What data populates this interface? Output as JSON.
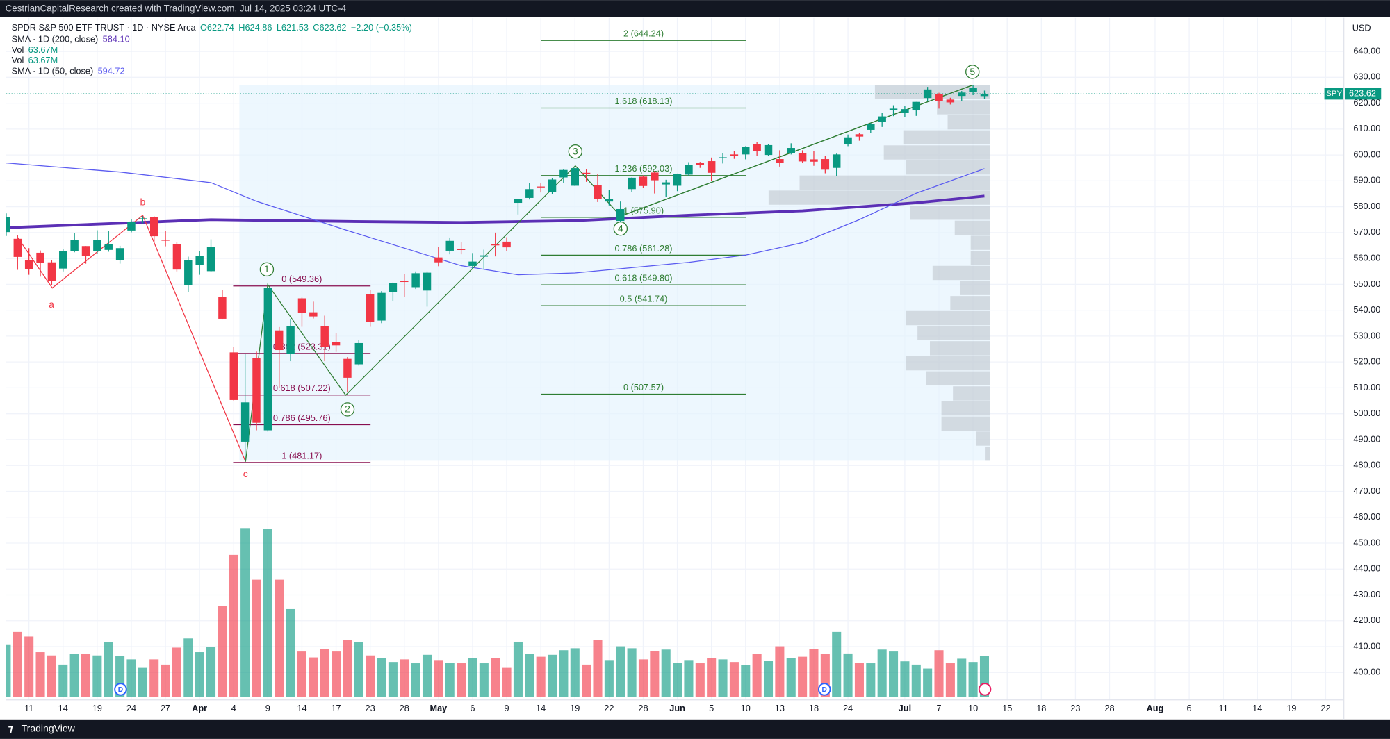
{
  "header": {
    "attribution": "CestrianCapitalResearch created with TradingView.com, Jul 14, 2025 03:24 UTC-4",
    "brand": "TradingView"
  },
  "chart_data": {
    "type": "candlestick",
    "title": "SPDR S&P 500 ETF TRUST · 1D · NYSE Arca",
    "ohlc_legend": [
      "O622.74",
      "H624.86",
      "L621.53",
      "C623.62",
      "−2.20 (−0.35%)"
    ],
    "symbol": "SPY",
    "currency": "USD",
    "up_color": "#089981",
    "down_color": "#f23645",
    "indicators": [
      {
        "label": "SMA · 1D (200, close)",
        "value": "584.10",
        "color": "#5b2fb5",
        "x": [
          0,
          10,
          18,
          30,
          40,
          50,
          60,
          70,
          80,
          86
        ],
        "values": [
          571.9,
          573.6,
          575.0,
          574.3,
          573.9,
          574.6,
          576.7,
          578.4,
          581.5,
          584.1
        ]
      },
      {
        "label": "Vol",
        "value": "63.67M",
        "color": "#089981"
      },
      {
        "label": "Vol",
        "value": "63.67M",
        "color": "#089981"
      },
      {
        "label": "SMA · 1D (50, close)",
        "value": "594.72",
        "color": "#5b5bf0",
        "x": [
          0,
          10,
          18,
          22,
          30,
          40,
          45,
          50,
          60,
          65,
          70,
          75,
          80,
          86
        ],
        "values": [
          596.9,
          593.4,
          589.3,
          582.1,
          570.8,
          557.2,
          553.7,
          554.4,
          558.5,
          561.3,
          566.1,
          575.0,
          585.2,
          594.7
        ]
      }
    ],
    "open": [
      570.2,
      567.6,
      559.4,
      562.2,
      558.5,
      556.1,
      562.8,
      564.8,
      562.8,
      563.3,
      559.3,
      570.8,
      575.3,
      576.0,
      567.2,
      565.5,
      549.8,
      557.5,
      555.1,
      545.1,
      523.7,
      489.2,
      521.5,
      493.6,
      532.2,
      523.0,
      544.6,
      539.2,
      533.8,
      527.6,
      521.2,
      519.1,
      546.1,
      536.0,
      547.0,
      551.4,
      548.9,
      547.6,
      560.4,
      563.0,
      563.6,
      557.1,
      560.7,
      565.4,
      566.5,
      581.5,
      583.4,
      587.8,
      585.6,
      591.3,
      588.1,
      593.1,
      588.4,
      582.0,
      574.5,
      586.8,
      591.6,
      593.2,
      588.6,
      588.1,
      592.4,
      596.9,
      597.6,
      598.7,
      600.2,
      600.2,
      604.2,
      600.0,
      598.4,
      600.7,
      600.7,
      598.3,
      598.4,
      595.0,
      604.3,
      608.0,
      609.7,
      612.9,
      617.4,
      616.4,
      617.2,
      622.0,
      623.4,
      621.4,
      622.8,
      624.2,
      622.74
    ],
    "high": [
      577.4,
      569.1,
      564.0,
      563.1,
      559.4,
      563.8,
      569.7,
      564.8,
      570.9,
      570.6,
      564.9,
      575.2,
      576.4,
      576.3,
      570.7,
      566.3,
      560.7,
      562.9,
      567.4,
      547.9,
      525.9,
      523.2,
      524.0,
      548.6,
      533.5,
      536.4,
      544.9,
      543.3,
      537.9,
      531.2,
      521.9,
      528.6,
      547.8,
      547.4,
      550.7,
      553.9,
      555.0,
      555.0,
      564.6,
      568.1,
      566.2,
      562.1,
      563.4,
      570.0,
      568.2,
      583.0,
      589.1,
      589.0,
      590.9,
      594.5,
      595.5,
      594.5,
      592.6,
      586.6,
      582.0,
      591.3,
      592.1,
      593.8,
      590.4,
      592.8,
      597.2,
      597.3,
      599.0,
      600.8,
      601.4,
      603.4,
      605.0,
      604.1,
      601.8,
      604.5,
      601.8,
      601.4,
      599.5,
      600.5,
      607.9,
      608.6,
      612.3,
      616.4,
      619.2,
      618.8,
      620.5,
      626.3,
      624.0,
      622.1,
      624.7,
      626.9,
      624.86
    ],
    "low": [
      568.7,
      555.6,
      553.7,
      553.0,
      549.7,
      555.0,
      562.4,
      558.0,
      561.7,
      562.6,
      558.0,
      570.1,
      573.6,
      566.5,
      564.7,
      555.0,
      546.9,
      553.7,
      554.8,
      536.4,
      505.1,
      481.8,
      493.6,
      493.1,
      509.9,
      520.3,
      533.6,
      536.8,
      520.3,
      523.9,
      508.3,
      518.6,
      533.6,
      535.0,
      543.4,
      545.0,
      548.2,
      541.4,
      557.0,
      561.6,
      561.6,
      556.1,
      555.9,
      560.8,
      562.8,
      577.0,
      582.8,
      585.5,
      584.8,
      589.3,
      588.0,
      589.6,
      581.8,
      580.5,
      573.6,
      585.8,
      587.4,
      585.1,
      583.9,
      586.0,
      591.8,
      595.0,
      590.0,
      596.7,
      598.5,
      598.3,
      599.7,
      599.6,
      595.5,
      600.2,
      596.8,
      595.8,
      592.9,
      591.9,
      603.4,
      605.5,
      608.4,
      610.8,
      615.0,
      614.6,
      615.1,
      620.9,
      617.9,
      619.5,
      620.9,
      623.1,
      621.53
    ],
    "close": [
      575.9,
      560.6,
      555.9,
      558.4,
      551.4,
      562.8,
      567.2,
      561.0,
      567.1,
      565.5,
      564.0,
      574.1,
      575.5,
      568.6,
      567.1,
      555.7,
      559.4,
      561.0,
      564.5,
      536.7,
      505.3,
      504.4,
      496.5,
      548.6,
      524.6,
      533.9,
      539.1,
      537.6,
      525.7,
      526.4,
      513.9,
      527.3,
      535.4,
      546.7,
      550.6,
      550.9,
      554.3,
      554.5,
      558.5,
      566.8,
      563.5,
      558.8,
      561.2,
      565.1,
      564.3,
      583.0,
      586.8,
      587.6,
      590.5,
      594.2,
      594.9,
      592.9,
      582.9,
      583.1,
      579.1,
      591.2,
      588.0,
      590.2,
      589.4,
      592.7,
      596.1,
      596.2,
      593.1,
      599.1,
      599.7,
      603.1,
      601.4,
      603.8,
      597.0,
      602.7,
      597.5,
      597.4,
      594.3,
      600.2,
      606.8,
      607.1,
      611.9,
      614.9,
      617.9,
      617.7,
      620.5,
      625.3,
      620.7,
      620.3,
      624.1,
      625.8,
      623.62
    ],
    "volume": [
      81,
      100,
      93,
      69,
      64,
      50,
      66,
      66,
      64,
      84,
      63,
      58,
      45,
      58,
      50,
      76,
      90,
      69,
      77,
      140,
      218,
      259,
      180,
      258,
      180,
      135,
      70,
      61,
      74,
      70,
      88,
      84,
      64,
      60,
      54,
      58,
      52,
      65,
      57,
      53,
      52,
      60,
      52,
      60,
      45,
      85,
      66,
      62,
      65,
      72,
      75,
      50,
      88,
      57,
      78,
      75,
      58,
      71,
      73,
      53,
      57,
      52,
      60,
      58,
      54,
      49,
      66,
      56,
      78,
      60,
      62,
      74,
      66,
      100,
      67,
      53,
      52,
      73,
      70,
      55,
      50,
      44,
      72,
      52,
      59,
      54,
      63.67
    ],
    "xlim": [
      0,
      117.6
    ],
    "xticks": [
      {
        "value": 2,
        "label": "11"
      },
      {
        "value": 5,
        "label": "14"
      },
      {
        "value": 8,
        "label": "19"
      },
      {
        "value": 11,
        "label": "24"
      },
      {
        "value": 14,
        "label": "27"
      },
      {
        "value": 17,
        "label": "Apr"
      },
      {
        "value": 20,
        "label": "4"
      },
      {
        "value": 23,
        "label": "9"
      },
      {
        "value": 26,
        "label": "14"
      },
      {
        "value": 29,
        "label": "17"
      },
      {
        "value": 32,
        "label": "23"
      },
      {
        "value": 35,
        "label": "28"
      },
      {
        "value": 38,
        "label": "May"
      },
      {
        "value": 41,
        "label": "6"
      },
      {
        "value": 44,
        "label": "9"
      },
      {
        "value": 47,
        "label": "14"
      },
      {
        "value": 50,
        "label": "19"
      },
      {
        "value": 53,
        "label": "22"
      },
      {
        "value": 56,
        "label": "28"
      },
      {
        "value": 59,
        "label": "Jun"
      },
      {
        "value": 62,
        "label": "5"
      },
      {
        "value": 65,
        "label": "10"
      },
      {
        "value": 68,
        "label": "13"
      },
      {
        "value": 71,
        "label": "18"
      },
      {
        "value": 74,
        "label": "24"
      },
      {
        "value": 79,
        "label": "Jul"
      },
      {
        "value": 82,
        "label": "7"
      },
      {
        "value": 85,
        "label": "10"
      },
      {
        "value": 88,
        "label": "15"
      },
      {
        "value": 91,
        "label": "18"
      },
      {
        "value": 94,
        "label": "23"
      },
      {
        "value": 97,
        "label": "28"
      },
      {
        "value": 101,
        "label": "Aug"
      },
      {
        "value": 104,
        "label": "6"
      },
      {
        "value": 107,
        "label": "11"
      },
      {
        "value": 110,
        "label": "14"
      },
      {
        "value": 113,
        "label": "19"
      },
      {
        "value": 116,
        "label": "22"
      }
    ],
    "ylim": [
      389.4,
      653.0
    ],
    "yticks": [
      {
        "value": 400,
        "label": "400.00"
      },
      {
        "value": 410,
        "label": "410.00"
      },
      {
        "value": 420,
        "label": "420.00"
      },
      {
        "value": 430,
        "label": "430.00"
      },
      {
        "value": 440,
        "label": "440.00"
      },
      {
        "value": 450,
        "label": "450.00"
      },
      {
        "value": 460,
        "label": "460.00"
      },
      {
        "value": 470,
        "label": "470.00"
      },
      {
        "value": 480,
        "label": "480.00"
      },
      {
        "value": 490,
        "label": "490.00"
      },
      {
        "value": 500,
        "label": "500.00"
      },
      {
        "value": 510,
        "label": "510.00"
      },
      {
        "value": 520,
        "label": "520.00"
      },
      {
        "value": 530,
        "label": "530.00"
      },
      {
        "value": 540,
        "label": "540.00"
      },
      {
        "value": 550,
        "label": "550.00"
      },
      {
        "value": 560,
        "label": "560.00"
      },
      {
        "value": 570,
        "label": "570.00"
      },
      {
        "value": 580,
        "label": "580.00"
      },
      {
        "value": 590,
        "label": "590.00"
      },
      {
        "value": 600,
        "label": "600.00"
      },
      {
        "value": 610,
        "label": "610.00"
      },
      {
        "value": 620,
        "label": "620.00"
      },
      {
        "value": 630,
        "label": "630.00"
      },
      {
        "value": 640,
        "label": "640.00"
      }
    ],
    "grid": true,
    "fib_retracements": [
      {
        "color": "#880e4f",
        "levels": [
          {
            "value": 549.36,
            "label": "0 (549.36)"
          },
          {
            "value": 523.31,
            "label": "0.382 (523.31)"
          },
          {
            "value": 507.22,
            "label": "0.618 (507.22)"
          },
          {
            "value": 495.76,
            "label": "0.786 (495.76)"
          },
          {
            "value": 481.17,
            "label": "1 (481.17)"
          }
        ]
      },
      {
        "color": "#2e7d32",
        "levels": [
          {
            "value": 644.24,
            "label": "2 (644.24)"
          },
          {
            "value": 618.13,
            "label": "1.618 (618.13)"
          },
          {
            "value": 592.03,
            "label": "1.236 (592.03)"
          },
          {
            "value": 575.9,
            "label": "1 (575.90)"
          },
          {
            "value": 561.28,
            "label": "0.786 (561.28)"
          },
          {
            "value": 549.8,
            "label": "0.618 (549.80)"
          },
          {
            "value": 541.74,
            "label": "0.5 (541.74)"
          },
          {
            "value": 507.57,
            "label": "0 (507.57)"
          }
        ]
      }
    ],
    "wave_labels": [
      "a",
      "b",
      "c",
      "1",
      "2",
      "3",
      "4",
      "5"
    ],
    "events": [
      {
        "label": "D"
      },
      {
        "label": "D"
      }
    ]
  }
}
